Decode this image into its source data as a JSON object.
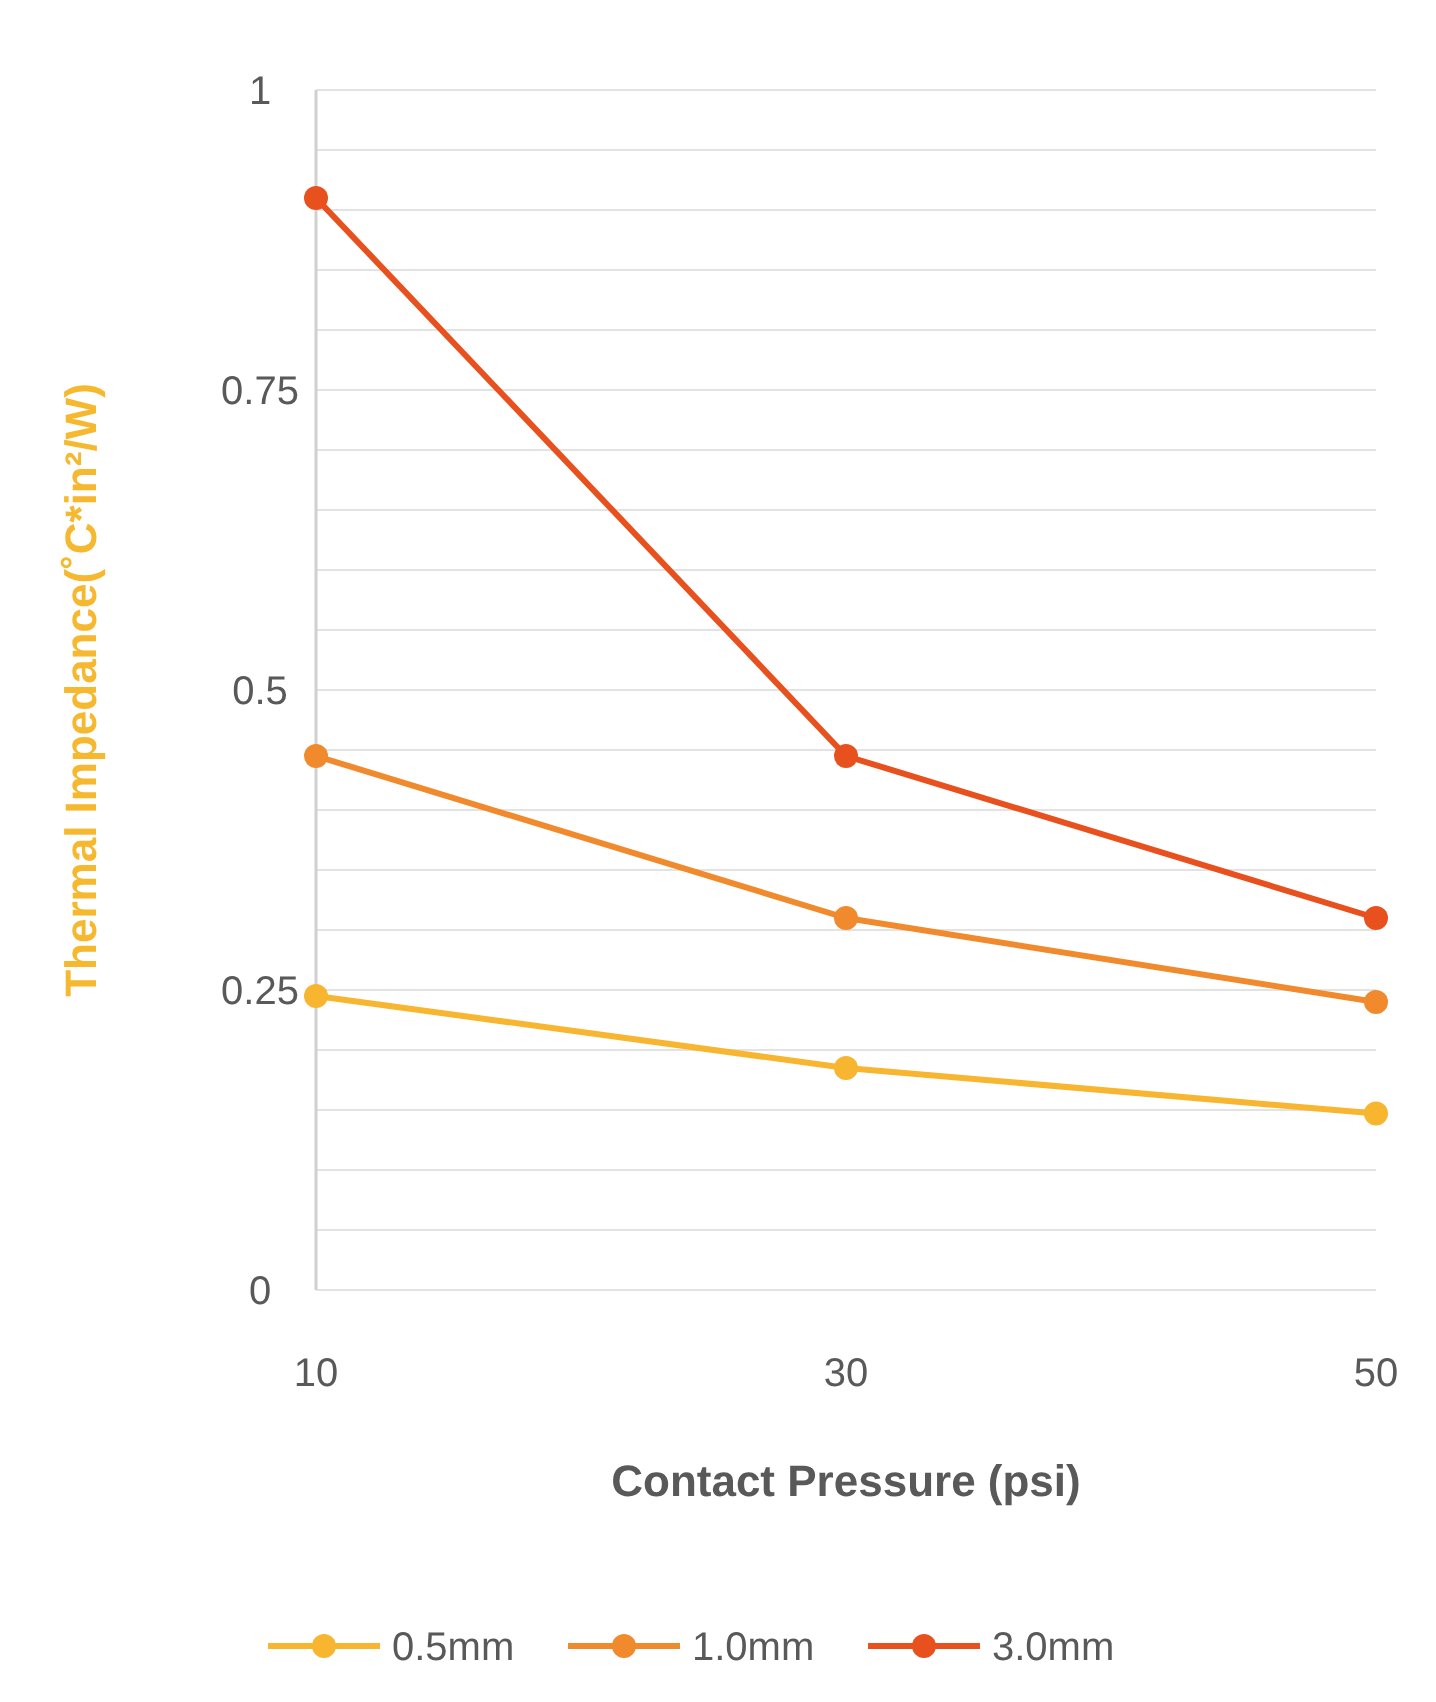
{
  "chart_data": {
    "type": "line",
    "xlabel": "Contact Pressure (psi)",
    "ylabel": "Thermal Impedance(˚C*in²/W)",
    "x": [
      10,
      30,
      50
    ],
    "xlim": [
      10,
      50
    ],
    "xticks": [
      10,
      30,
      50
    ],
    "ylim": [
      0,
      1
    ],
    "yticks": [
      0,
      {
        "value": 0.05,
        "label": null
      },
      {
        "value": 0.1,
        "label": null
      },
      {
        "value": 0.15,
        "label": null
      },
      {
        "value": 0.2,
        "label": null
      },
      0.25,
      {
        "value": 0.3,
        "label": null
      },
      {
        "value": 0.35,
        "label": null
      },
      {
        "value": 0.4,
        "label": null
      },
      {
        "value": 0.45,
        "label": null
      },
      0.5,
      {
        "value": 0.55,
        "label": null
      },
      {
        "value": 0.6,
        "label": null
      },
      {
        "value": 0.65,
        "label": null
      },
      {
        "value": 0.7,
        "label": null
      },
      0.75,
      {
        "value": 0.8,
        "label": null
      },
      {
        "value": 0.85,
        "label": null
      },
      {
        "value": 0.9,
        "label": null
      },
      {
        "value": 0.95,
        "label": null
      },
      1
    ],
    "grid": "y",
    "legend": "bottom",
    "marker": "circle",
    "line_style": "solid",
    "series": [
      {
        "name": "0.5mm",
        "color": "#f7b530",
        "values": [
          0.245,
          0.185,
          0.147
        ]
      },
      {
        "name": "1.0mm",
        "color": "#f08a2c",
        "values": [
          0.445,
          0.31,
          0.24
        ]
      },
      {
        "name": "3.0mm",
        "color": "#e8501e",
        "values": [
          0.91,
          0.445,
          0.31
        ]
      }
    ]
  }
}
